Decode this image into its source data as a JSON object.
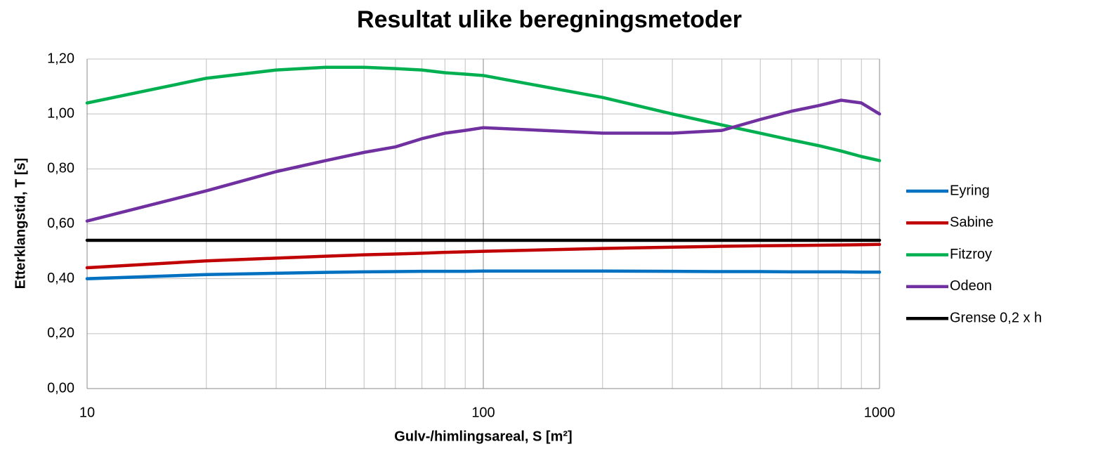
{
  "chart_data": {
    "type": "line",
    "title": "Resultat ulike beregningsmetoder",
    "x_label": "Gulv-/himlingsareal, S [m²]",
    "y_label": "Etterklangstid, T [s]",
    "xscale": "log",
    "x": [
      10,
      20,
      30,
      40,
      50,
      60,
      70,
      80,
      90,
      100,
      200,
      300,
      400,
      500,
      600,
      700,
      800,
      900,
      1000
    ],
    "series": [
      {
        "name": "Eyring",
        "color": "#0070c0",
        "values": [
          0.4,
          0.415,
          0.42,
          0.423,
          0.425,
          0.426,
          0.427,
          0.427,
          0.427,
          0.428,
          0.428,
          0.427,
          0.426,
          0.426,
          0.425,
          0.425,
          0.425,
          0.424,
          0.424
        ]
      },
      {
        "name": "Sabine",
        "color": "#c00000",
        "values": [
          0.44,
          0.465,
          0.475,
          0.482,
          0.487,
          0.49,
          0.493,
          0.496,
          0.498,
          0.5,
          0.51,
          0.515,
          0.518,
          0.52,
          0.521,
          0.522,
          0.523,
          0.524,
          0.525
        ]
      },
      {
        "name": "Fitzroy",
        "color": "#00b050",
        "values": [
          1.04,
          1.13,
          1.16,
          1.17,
          1.17,
          1.165,
          1.16,
          1.15,
          1.145,
          1.14,
          1.06,
          1.0,
          0.96,
          0.93,
          0.905,
          0.885,
          0.865,
          0.845,
          0.83
        ]
      },
      {
        "name": "Odeon",
        "color": "#7030a0",
        "values": [
          0.61,
          0.72,
          0.79,
          0.83,
          0.86,
          0.88,
          0.91,
          0.93,
          0.94,
          0.95,
          0.93,
          0.93,
          0.94,
          0.98,
          1.01,
          1.03,
          1.05,
          1.04,
          1.0
        ]
      },
      {
        "name": "Grense 0,2 x h",
        "color": "#000000",
        "values": [
          0.54,
          0.54,
          0.54,
          0.54,
          0.54,
          0.54,
          0.54,
          0.54,
          0.54,
          0.54,
          0.54,
          0.54,
          0.54,
          0.54,
          0.54,
          0.54,
          0.54,
          0.54,
          0.54
        ]
      }
    ],
    "xlim": [
      10,
      1000
    ],
    "xticks": [
      10,
      100,
      1000
    ],
    "xminorticks": [
      20,
      30,
      40,
      50,
      60,
      70,
      80,
      90,
      200,
      300,
      400,
      500,
      600,
      700,
      800,
      900
    ],
    "ylim": [
      0,
      1.2
    ],
    "yticks": [
      {
        "value": 0,
        "label": "0,00"
      },
      {
        "value": 0.2,
        "label": "0,20"
      },
      {
        "value": 0.4,
        "label": "0,40"
      },
      {
        "value": 0.6,
        "label": "0,60"
      },
      {
        "value": 0.8,
        "label": "0,80"
      },
      {
        "value": 1.0,
        "label": "1,00"
      },
      {
        "value": 1.2,
        "label": "1,20"
      }
    ],
    "grid": true,
    "legend": "right"
  }
}
